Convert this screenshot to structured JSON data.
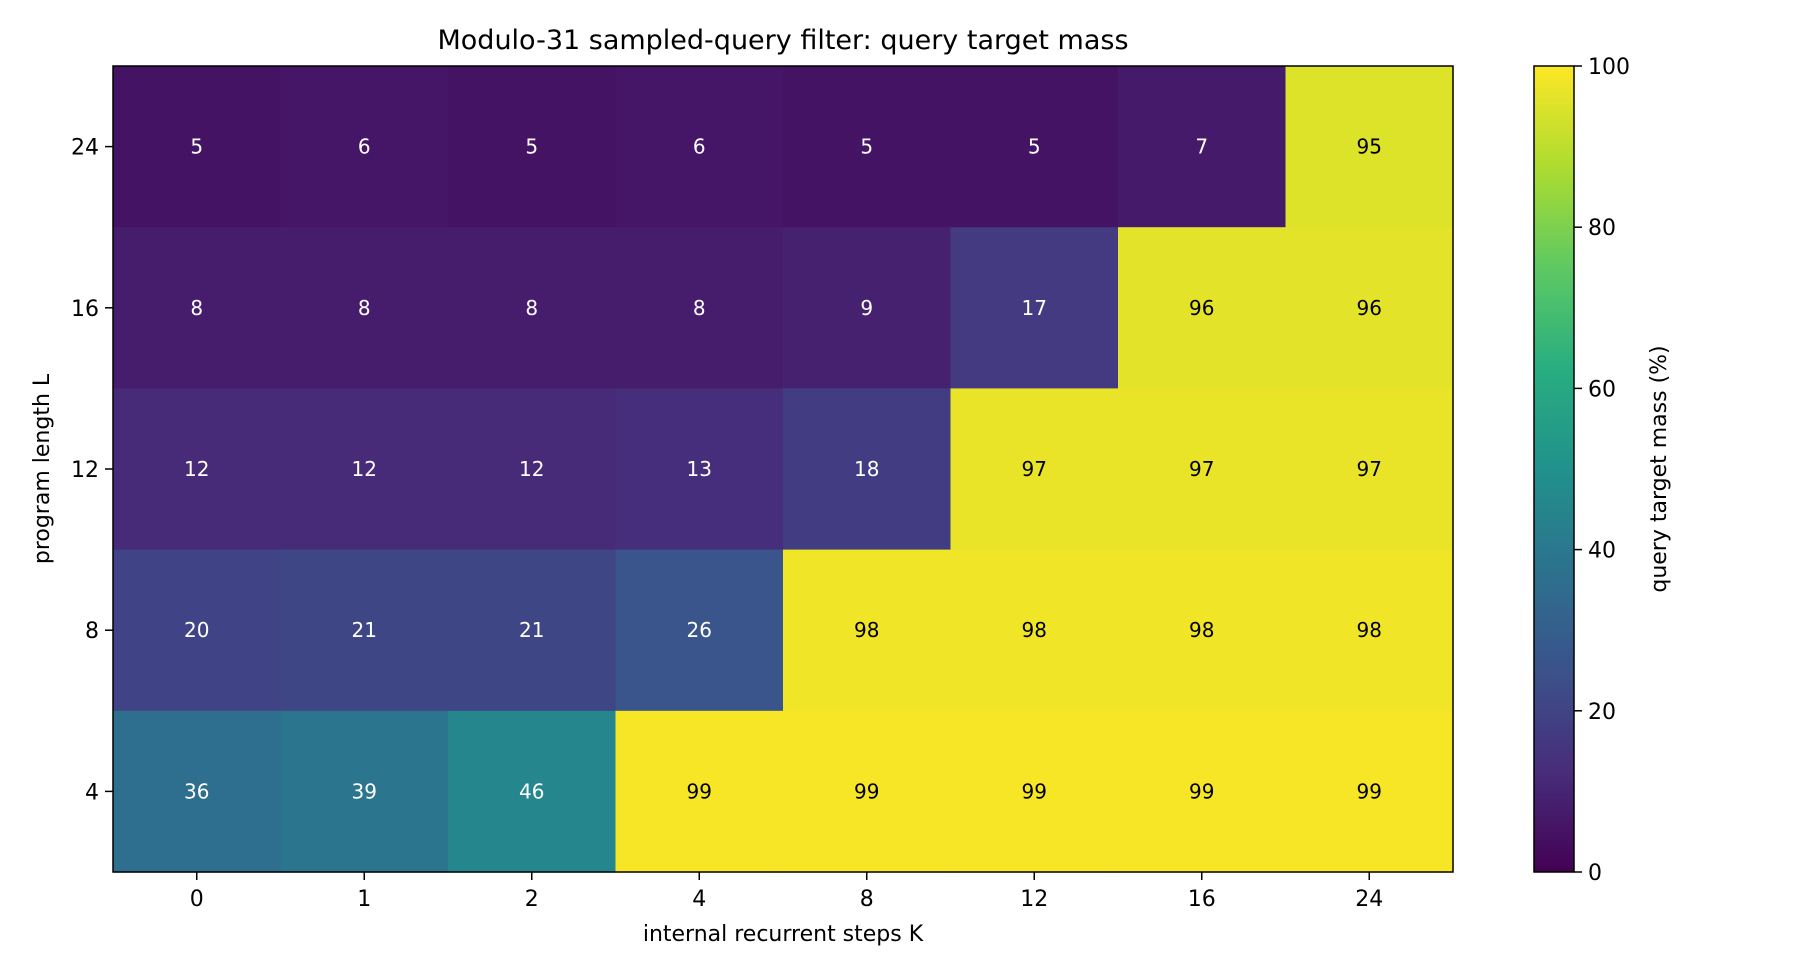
{
  "chart_data": {
    "type": "heatmap",
    "title": "Modulo-31 sampled-query filter: query target mass",
    "xlabel": "internal recurrent steps K",
    "ylabel": "program length L",
    "x": [
      "0",
      "1",
      "2",
      "4",
      "8",
      "12",
      "16",
      "24"
    ],
    "y": [
      "24",
      "16",
      "12",
      "8",
      "4"
    ],
    "values": [
      [
        5,
        6,
        5,
        6,
        5,
        5,
        7,
        95
      ],
      [
        8,
        8,
        8,
        8,
        9,
        17,
        96,
        96
      ],
      [
        12,
        12,
        12,
        13,
        18,
        97,
        97,
        97
      ],
      [
        20,
        21,
        21,
        26,
        98,
        98,
        98,
        98
      ],
      [
        36,
        39,
        46,
        99,
        99,
        99,
        99,
        99
      ]
    ],
    "colormap": "viridis",
    "colorbar": {
      "label": "query target mass (%)",
      "range": [
        0,
        100
      ],
      "ticks": [
        "0",
        "20",
        "40",
        "60",
        "80",
        "100"
      ]
    },
    "cell_text_colors": {
      "light": "#ffffff",
      "dark": "#000000"
    }
  }
}
